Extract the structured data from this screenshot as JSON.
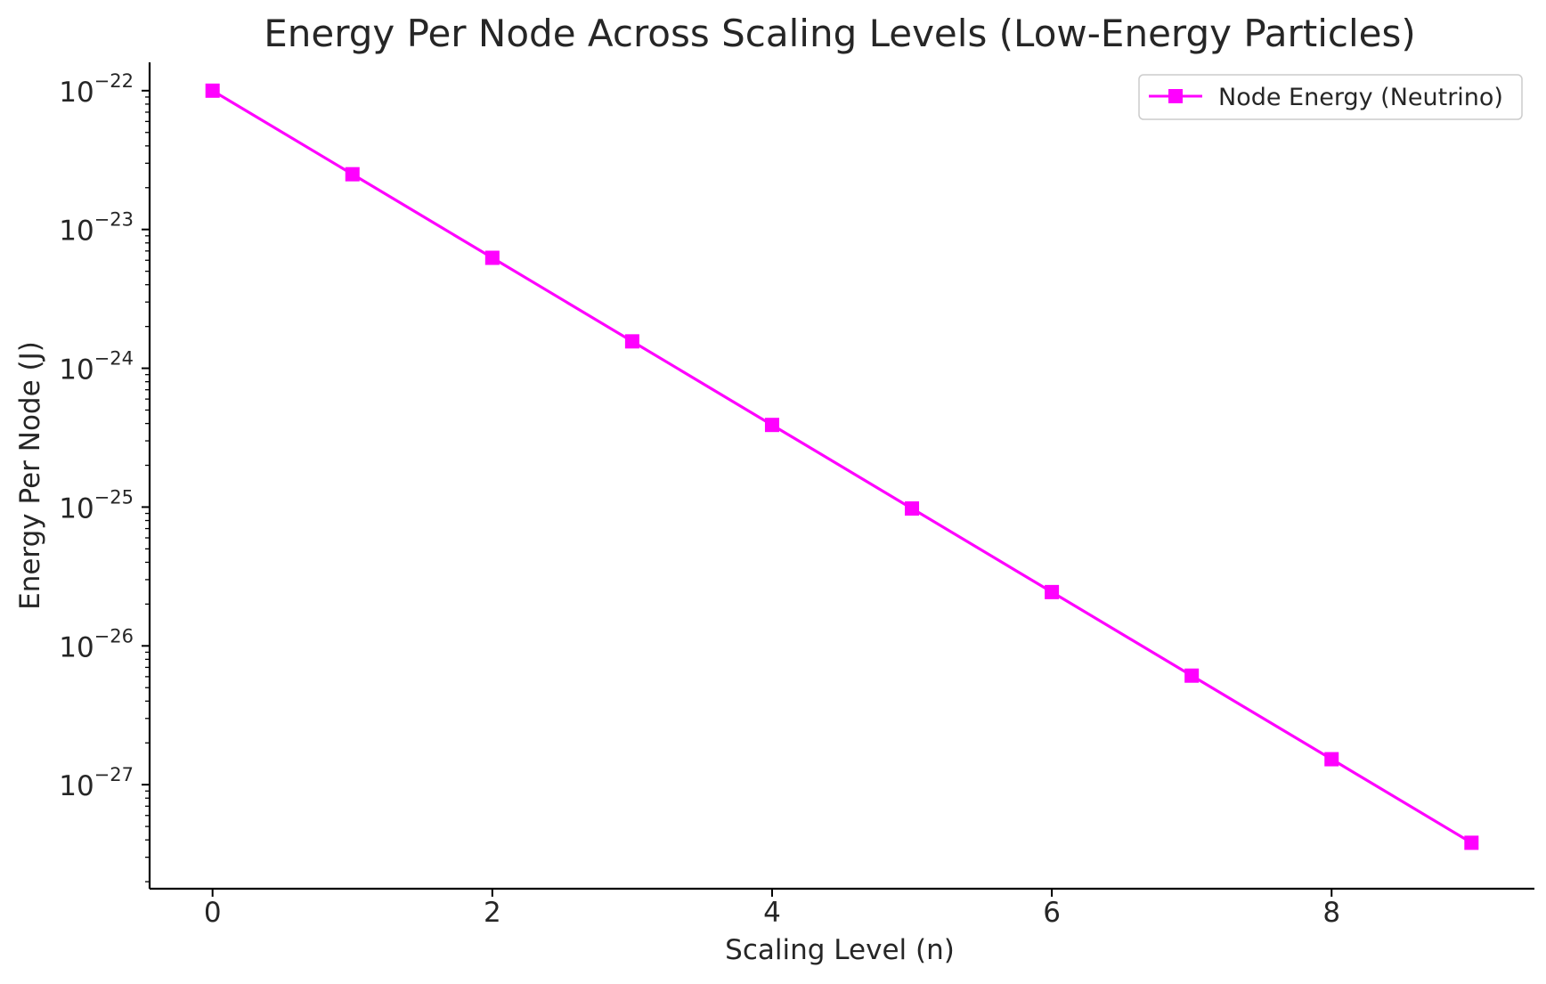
{
  "colors": {
    "series": "#ff00ff",
    "axis": "#000000",
    "text": "#262626",
    "legend_border": "#cccccc"
  },
  "chart_data": {
    "type": "line",
    "title": "Energy Per Node Across Scaling Levels (Low-Energy Particles)",
    "xlabel": "Scaling Level (n)",
    "ylabel": "Energy Per Node (J)",
    "x": [
      0,
      1,
      2,
      3,
      4,
      5,
      6,
      7,
      8,
      9
    ],
    "series": [
      {
        "name": "Node Energy (Neutrino)",
        "marker": "square",
        "values": [
          1e-22,
          2.5e-23,
          6.25e-24,
          1.5625e-24,
          3.90625e-25,
          9.765625e-26,
          2.44140625e-26,
          6.103515625e-27,
          1.52587890625e-27,
          3.814697265625e-28
        ]
      }
    ],
    "xlim": [
      -0.45,
      9.45
    ],
    "ylim": [
      1.78e-28,
      1.6e-22
    ],
    "yscale": "log",
    "x_ticks": [
      0,
      2,
      4,
      6,
      8
    ],
    "x_tick_labels": [
      "0",
      "2",
      "4",
      "6",
      "8"
    ],
    "y_ticks": [
      1e-22,
      1e-23,
      1e-24,
      1e-25,
      1e-26,
      1e-27
    ],
    "y_tick_labels": [
      {
        "base": "10",
        "exp": "−22"
      },
      {
        "base": "10",
        "exp": "−23"
      },
      {
        "base": "10",
        "exp": "−24"
      },
      {
        "base": "10",
        "exp": "−25"
      },
      {
        "base": "10",
        "exp": "−26"
      },
      {
        "base": "10",
        "exp": "−27"
      }
    ],
    "grid": false,
    "legend_position": "top-right"
  }
}
